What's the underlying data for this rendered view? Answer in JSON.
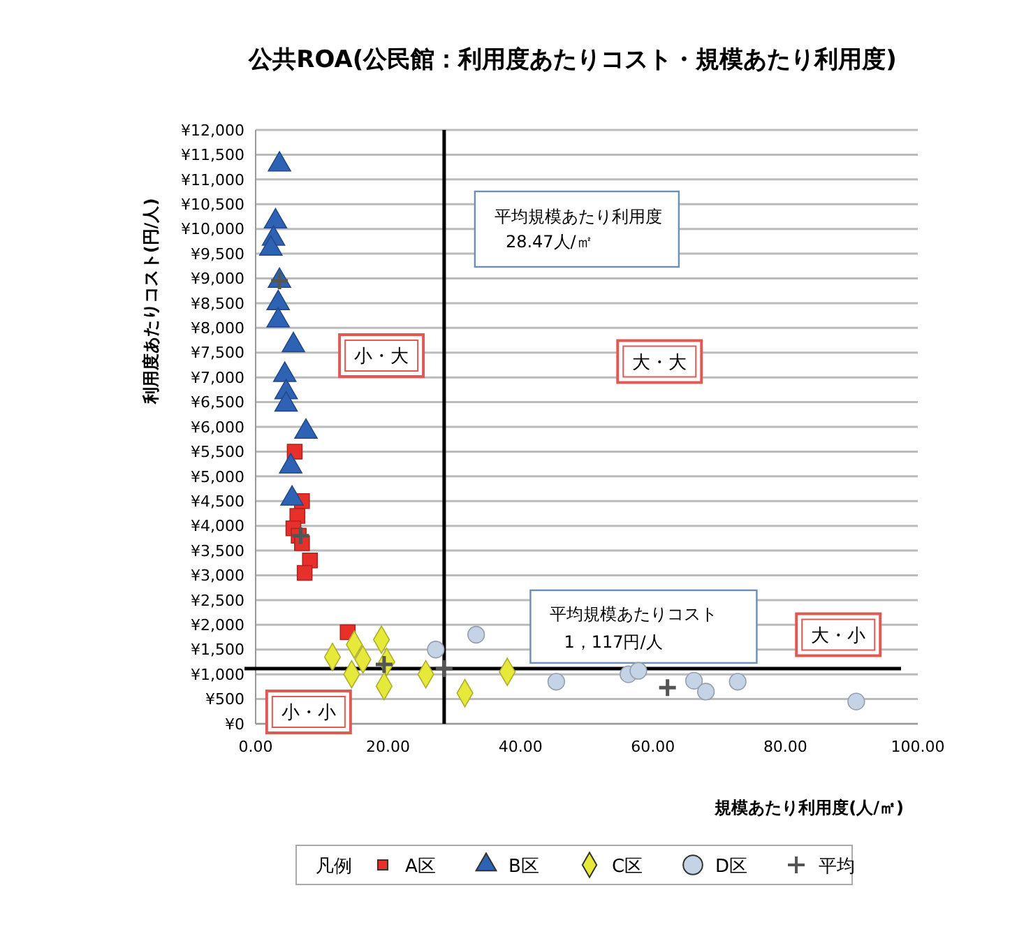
{
  "chart_data": {
    "type": "scatter",
    "title": "公共ROA(公民館：利用度あたりコスト・規模あたり利用度)",
    "xlabel": "規模あたり利用度(人/㎡)",
    "ylabel": "利用度あたりコスト(円/人)",
    "legend_title": "凡例",
    "legend": "bottom",
    "grid": "y",
    "xlim": [
      0,
      100
    ],
    "xticks": [
      {
        "value": 0,
        "label": "0.00"
      },
      {
        "value": 20,
        "label": "20.00"
      },
      {
        "value": 40,
        "label": "40.00"
      },
      {
        "value": 60,
        "label": "60.00"
      },
      {
        "value": 80,
        "label": "80.00"
      },
      {
        "value": 100,
        "label": "100.00"
      }
    ],
    "ylim": [
      0,
      12000
    ],
    "yticks": [
      {
        "value": 0,
        "label": "¥0"
      },
      {
        "value": 500,
        "label": "¥500"
      },
      {
        "value": 1000,
        "label": "¥1,000"
      },
      {
        "value": 1500,
        "label": "¥1,500"
      },
      {
        "value": 2000,
        "label": "¥2,000"
      },
      {
        "value": 2500,
        "label": "¥2,500"
      },
      {
        "value": 3000,
        "label": "¥3,000"
      },
      {
        "value": 3500,
        "label": "¥3,500"
      },
      {
        "value": 4000,
        "label": "¥4,000"
      },
      {
        "value": 4500,
        "label": "¥4,500"
      },
      {
        "value": 5000,
        "label": "¥5,000"
      },
      {
        "value": 5500,
        "label": "¥5,500"
      },
      {
        "value": 6000,
        "label": "¥6,000"
      },
      {
        "value": 6500,
        "label": "¥6,500"
      },
      {
        "value": 7000,
        "label": "¥7,000"
      },
      {
        "value": 7500,
        "label": "¥7,500"
      },
      {
        "value": 8000,
        "label": "¥8,000"
      },
      {
        "value": 8500,
        "label": "¥8,500"
      },
      {
        "value": 9000,
        "label": "¥9,000"
      },
      {
        "value": 9500,
        "label": "¥9,500"
      },
      {
        "value": 10000,
        "label": "¥10,000"
      },
      {
        "value": 10500,
        "label": "¥10,500"
      },
      {
        "value": 11000,
        "label": "¥11,000"
      },
      {
        "value": 11500,
        "label": "¥11,500"
      },
      {
        "value": 12000,
        "label": "¥12,000"
      }
    ],
    "series": [
      {
        "name": "A区",
        "color": "#e8302a",
        "marker": "square",
        "x": [
          5.9,
          7.0,
          6.3,
          5.7,
          6.5,
          7.0,
          8.2,
          7.4,
          13.9
        ],
        "values": [
          5500,
          4500,
          4200,
          3950,
          3800,
          3650,
          3300,
          3050,
          1850
        ]
      },
      {
        "name": "B区",
        "color": "#2e62b4",
        "marker": "triangle",
        "x": [
          3.6,
          3.0,
          2.7,
          2.3,
          3.6,
          3.4,
          3.4,
          5.7,
          4.4,
          4.6,
          4.6,
          7.6,
          5.3,
          5.5
        ],
        "values": [
          11300,
          10150,
          9800,
          9600,
          8950,
          8500,
          8150,
          7650,
          7050,
          6700,
          6450,
          5900,
          5200,
          4550
        ]
      },
      {
        "name": "C区",
        "color": "#e6e83a",
        "marker": "diamond",
        "x": [
          11.6,
          14.9,
          16.2,
          19.0,
          19.8,
          14.5,
          19.4,
          25.7,
          31.6,
          38.0
        ],
        "values": [
          1350,
          1600,
          1300,
          1700,
          1250,
          1000,
          760,
          1000,
          620,
          1050
        ]
      },
      {
        "name": "D区",
        "color": "#c5d3e6",
        "marker": "circle",
        "x": [
          27.2,
          33.3,
          45.4,
          56.3,
          57.8,
          66.2,
          68.0,
          72.8,
          90.7
        ],
        "values": [
          1500,
          1800,
          850,
          1000,
          1070,
          870,
          650,
          850,
          450
        ]
      },
      {
        "name": "平均",
        "color": "#555555",
        "marker": "cross",
        "x": [
          6.8,
          3.6,
          19.4,
          62.2,
          28.47
        ],
        "values": [
          3800,
          8950,
          1200,
          730,
          1117
        ]
      }
    ],
    "ref_lines": [
      {
        "axis": "x",
        "value": 28.47,
        "label": "平均規模あたり利用度\n28.47人/㎡",
        "color": "#000000"
      },
      {
        "axis": "y",
        "value": 1117,
        "label": "平均規模あたりコスト\n1，117円/人",
        "color": "#000000"
      }
    ],
    "annotations": [
      "小・大",
      "大・大",
      "大・小",
      "小・小"
    ]
  }
}
